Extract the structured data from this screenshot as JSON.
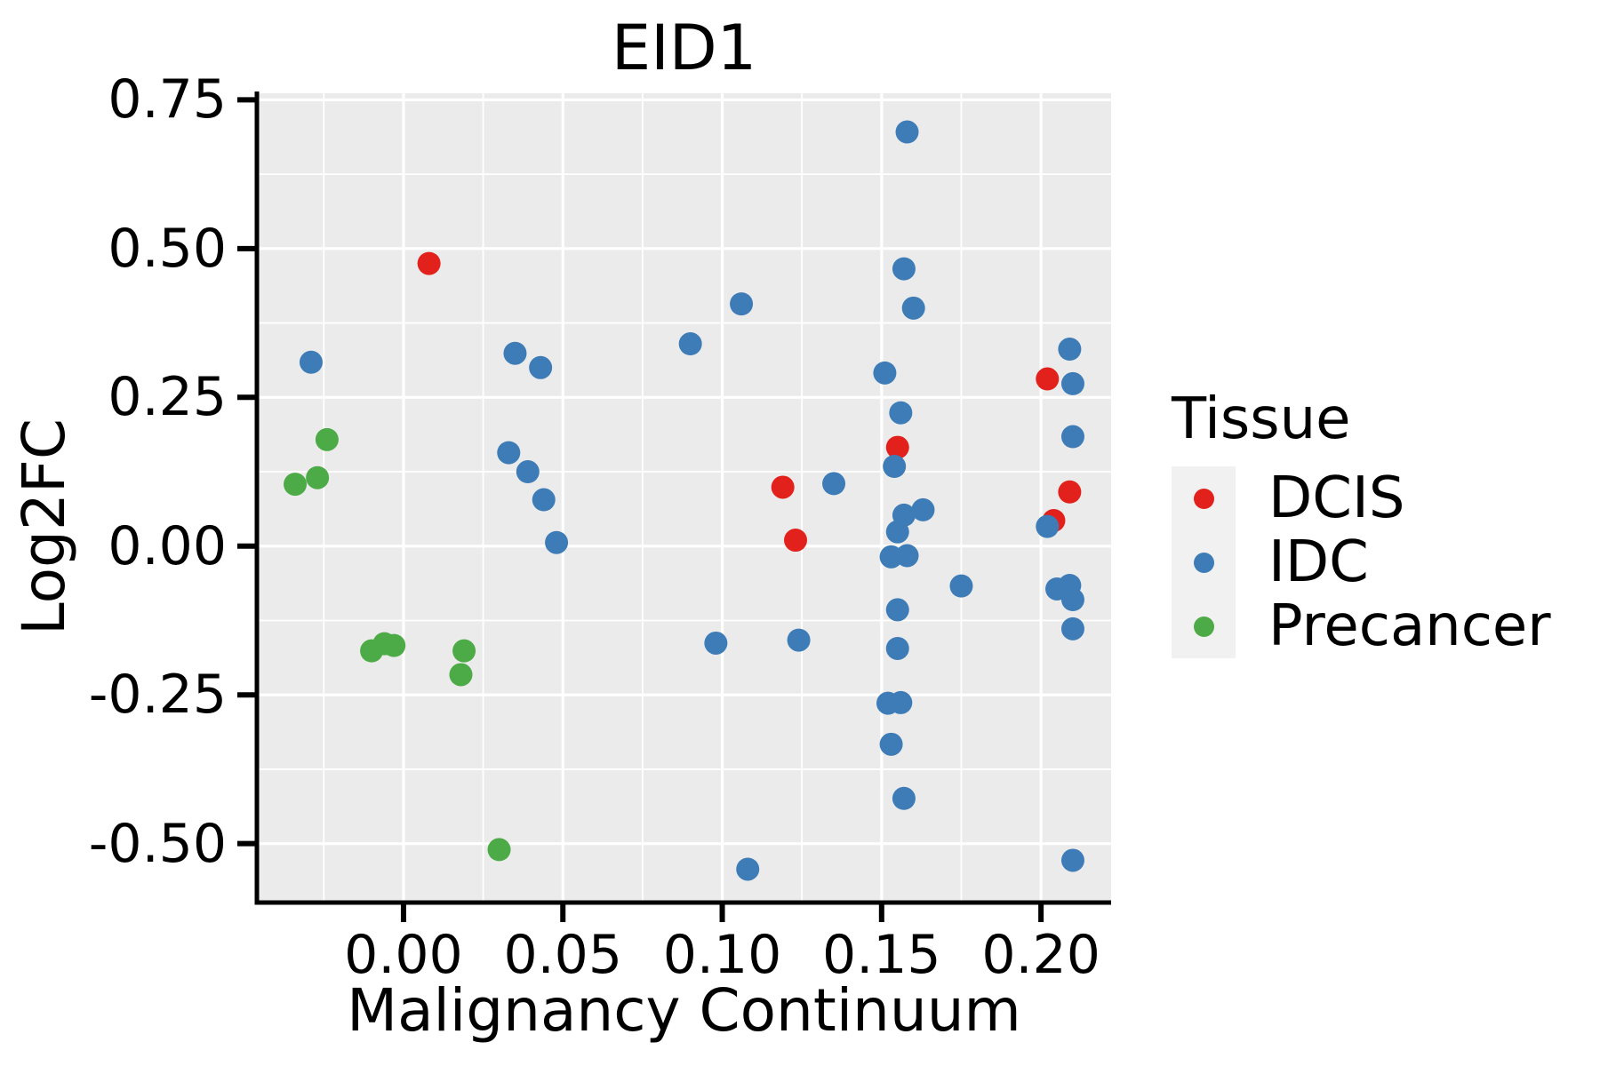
{
  "chart_data": {
    "type": "scatter",
    "title": "EID1",
    "xlabel": "Malignancy Continuum",
    "ylabel": "Log2FC",
    "legend_title": "Tissue",
    "legend_position": "right",
    "panel_background": "#ebebeb",
    "grid_color": "#ffffff",
    "axis_line_color": "#000000",
    "xlim": [
      -0.046,
      0.222
    ],
    "ylim": [
      -0.599,
      0.761
    ],
    "x_ticks": [
      0.0,
      0.05,
      0.1,
      0.15,
      0.2
    ],
    "x_tick_labels": [
      "0.00",
      "0.05",
      "0.10",
      "0.15",
      "0.20"
    ],
    "y_ticks": [
      0.75,
      0.5,
      0.25,
      0.0,
      -0.25,
      -0.5
    ],
    "y_tick_labels": [
      "0.75",
      "0.50",
      "0.25",
      "0.00",
      "-0.25",
      "-0.50"
    ],
    "x_minor_ticks": [
      -0.025,
      0.025,
      0.075,
      0.125,
      0.175
    ],
    "y_minor_ticks": [
      0.625,
      0.375,
      0.125,
      -0.125,
      -0.375
    ],
    "grid": "major and minor white gridlines on gray panel",
    "series": [
      {
        "name": "DCIS",
        "color": "#e2211c",
        "points": [
          [
            0.008,
            0.475
          ],
          [
            0.119,
            0.099
          ],
          [
            0.123,
            0.01
          ],
          [
            0.155,
            0.166
          ],
          [
            0.202,
            0.281
          ],
          [
            0.204,
            0.043
          ],
          [
            0.209,
            0.091
          ]
        ]
      },
      {
        "name": "IDC",
        "color": "#3e7cb7",
        "points": [
          [
            -0.029,
            0.309
          ],
          [
            0.033,
            0.157
          ],
          [
            0.035,
            0.324
          ],
          [
            0.039,
            0.125
          ],
          [
            0.043,
            0.3
          ],
          [
            0.044,
            0.078
          ],
          [
            0.048,
            0.006
          ],
          [
            0.09,
            0.34
          ],
          [
            0.098,
            -0.163
          ],
          [
            0.106,
            0.407
          ],
          [
            0.108,
            -0.543
          ],
          [
            0.124,
            -0.158
          ],
          [
            0.135,
            0.105
          ],
          [
            0.151,
            0.291
          ],
          [
            0.152,
            -0.264
          ],
          [
            0.153,
            -0.018
          ],
          [
            0.153,
            -0.333
          ],
          [
            0.154,
            0.134
          ],
          [
            0.155,
            -0.107
          ],
          [
            0.155,
            -0.172
          ],
          [
            0.155,
            0.024
          ],
          [
            0.156,
            0.224
          ],
          [
            0.156,
            -0.263
          ],
          [
            0.157,
            0.466
          ],
          [
            0.157,
            0.052
          ],
          [
            0.157,
            -0.424
          ],
          [
            0.158,
            0.696
          ],
          [
            0.158,
            -0.016
          ],
          [
            0.16,
            0.4
          ],
          [
            0.163,
            0.061
          ],
          [
            0.175,
            -0.067
          ],
          [
            0.202,
            0.033
          ],
          [
            0.205,
            -0.072
          ],
          [
            0.209,
            0.331
          ],
          [
            0.209,
            -0.066
          ],
          [
            0.21,
            0.273
          ],
          [
            0.21,
            0.184
          ],
          [
            0.21,
            -0.09
          ],
          [
            0.21,
            -0.139
          ],
          [
            0.21,
            -0.528
          ]
        ]
      },
      {
        "name": "Precancer",
        "color": "#4cab46",
        "points": [
          [
            -0.034,
            0.104
          ],
          [
            -0.027,
            0.115
          ],
          [
            -0.024,
            0.179
          ],
          [
            -0.01,
            -0.176
          ],
          [
            -0.006,
            -0.164
          ],
          [
            -0.003,
            -0.167
          ],
          [
            0.018,
            -0.216
          ],
          [
            0.019,
            -0.176
          ],
          [
            0.03,
            -0.51
          ]
        ]
      }
    ]
  }
}
